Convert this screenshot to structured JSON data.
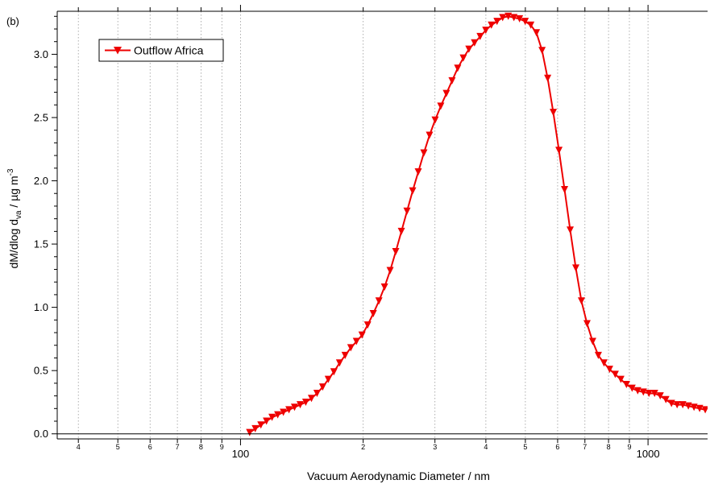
{
  "chart_data": {
    "type": "line",
    "panel_label": "(b)",
    "xlabel": "Vacuum Aerodynamic Diameter / nm",
    "ylabel_parts": {
      "main": "dM/dlog d",
      "sub": "va",
      "mid": " / µg m",
      "sup": "-3"
    },
    "x_scale": "log",
    "xlim": [
      35.5,
      1400
    ],
    "ylim": [
      -0.04,
      3.34
    ],
    "grid": "vertical dotted at minor decades",
    "legend": {
      "position": "top-left",
      "marker": "down-triangle"
    },
    "x_major_ticks": [
      {
        "value": 100,
        "label": "100"
      },
      {
        "value": 1000,
        "label": "1000"
      }
    ],
    "x_minor_ticks": [
      {
        "value": 40,
        "label": "4"
      },
      {
        "value": 50,
        "label": "5"
      },
      {
        "value": 60,
        "label": "6"
      },
      {
        "value": 70,
        "label": "7"
      },
      {
        "value": 80,
        "label": "8"
      },
      {
        "value": 90,
        "label": "9"
      },
      {
        "value": 200,
        "label": "2"
      },
      {
        "value": 300,
        "label": "3"
      },
      {
        "value": 400,
        "label": "4"
      },
      {
        "value": 500,
        "label": "5"
      },
      {
        "value": 600,
        "label": "6"
      },
      {
        "value": 700,
        "label": "7"
      },
      {
        "value": 800,
        "label": "8"
      },
      {
        "value": 900,
        "label": "9"
      }
    ],
    "y_ticks": [
      {
        "value": 0.0,
        "label": "0.0"
      },
      {
        "value": 0.5,
        "label": "0.5"
      },
      {
        "value": 1.0,
        "label": "1.0"
      },
      {
        "value": 1.5,
        "label": "1.5"
      },
      {
        "value": 2.0,
        "label": "2.0"
      },
      {
        "value": 2.5,
        "label": "2.5"
      },
      {
        "value": 3.0,
        "label": "3.0"
      }
    ],
    "series": [
      {
        "name": "Outflow Africa",
        "color": "#ee0000",
        "x": [
          105.3,
          108.7,
          112.2,
          115.8,
          119.5,
          123.4,
          127.4,
          131.5,
          135.7,
          140.1,
          144.6,
          149.3,
          154.1,
          159.1,
          164.2,
          169.5,
          175.0,
          180.6,
          186.5,
          192.5,
          198.7,
          205.1,
          211.7,
          218.6,
          225.6,
          232.9,
          240.4,
          248.2,
          256.2,
          264.5,
          273.0,
          281.8,
          290.9,
          300.3,
          310.0,
          320.0,
          330.4,
          341.1,
          352.1,
          363.4,
          375.2,
          387.3,
          399.8,
          412.7,
          426.1,
          439.8,
          454.0,
          468.7,
          483.8,
          499.5,
          515.6,
          532.3,
          549.5,
          567.2,
          585.5,
          604.5,
          624.0,
          644.2,
          665.0,
          686.4,
          708.6,
          731.5,
          755.2,
          779.6,
          804.8,
          830.8,
          857.6,
          885.3,
          913.9,
          943.4,
          973.9,
          1005.4,
          1037.8,
          1071.4,
          1106.0,
          1141.7,
          1178.6,
          1216.7,
          1256.0,
          1296.6,
          1338.5,
          1381.7
        ],
        "y": [
          0.01,
          0.04,
          0.07,
          0.1,
          0.13,
          0.15,
          0.17,
          0.19,
          0.21,
          0.23,
          0.25,
          0.28,
          0.32,
          0.37,
          0.43,
          0.49,
          0.56,
          0.62,
          0.68,
          0.73,
          0.78,
          0.86,
          0.95,
          1.05,
          1.16,
          1.29,
          1.44,
          1.6,
          1.76,
          1.92,
          2.07,
          2.22,
          2.36,
          2.48,
          2.59,
          2.69,
          2.79,
          2.89,
          2.97,
          3.04,
          3.09,
          3.14,
          3.19,
          3.23,
          3.26,
          3.29,
          3.3,
          3.29,
          3.28,
          3.26,
          3.23,
          3.17,
          3.03,
          2.81,
          2.54,
          2.24,
          1.93,
          1.61,
          1.31,
          1.05,
          0.87,
          0.73,
          0.62,
          0.56,
          0.51,
          0.47,
          0.43,
          0.39,
          0.36,
          0.34,
          0.33,
          0.32,
          0.32,
          0.3,
          0.27,
          0.24,
          0.23,
          0.23,
          0.22,
          0.21,
          0.2,
          0.19
        ]
      }
    ]
  }
}
